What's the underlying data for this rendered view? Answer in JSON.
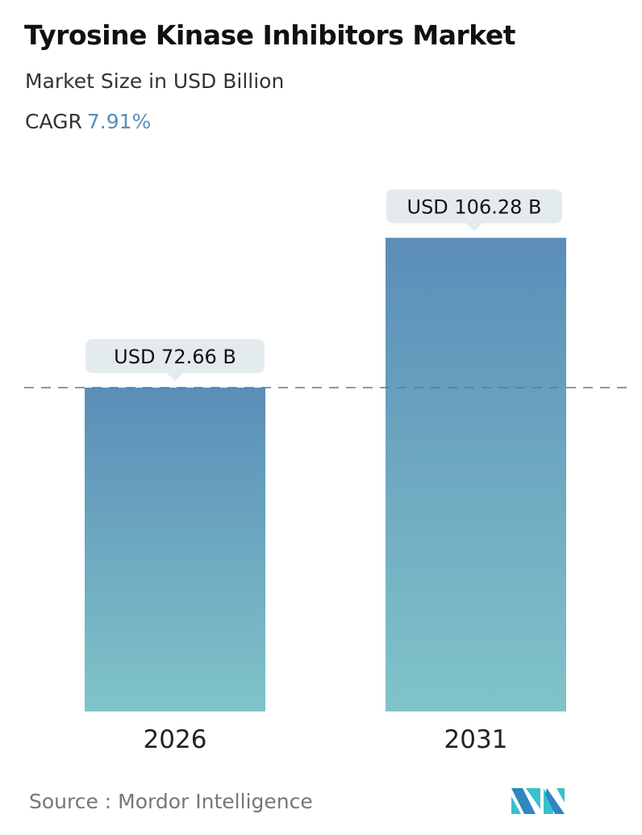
{
  "header": {
    "title": "Tyrosine Kinase Inhibitors Market",
    "subtitle": "Market Size in USD Billion",
    "cagr_label": "CAGR",
    "cagr_value": "7.91%"
  },
  "chart_data": {
    "type": "bar",
    "categories": [
      "2026",
      "2031"
    ],
    "values": [
      72.66,
      106.28
    ],
    "data_labels": [
      "USD 72.66 B",
      "USD 106.28 B"
    ],
    "reference_line": {
      "value": 72.66,
      "style": "dashed"
    },
    "grid": false,
    "colors": {
      "bar_top": "#5b8db8",
      "bar_bottom": "#80c4c9",
      "callout": "#e4ebee",
      "dash": "#5b7c95"
    }
  },
  "footer": {
    "source": "Source :  Mordor Intelligence",
    "logo_text": "Mordor Intelligence"
  }
}
